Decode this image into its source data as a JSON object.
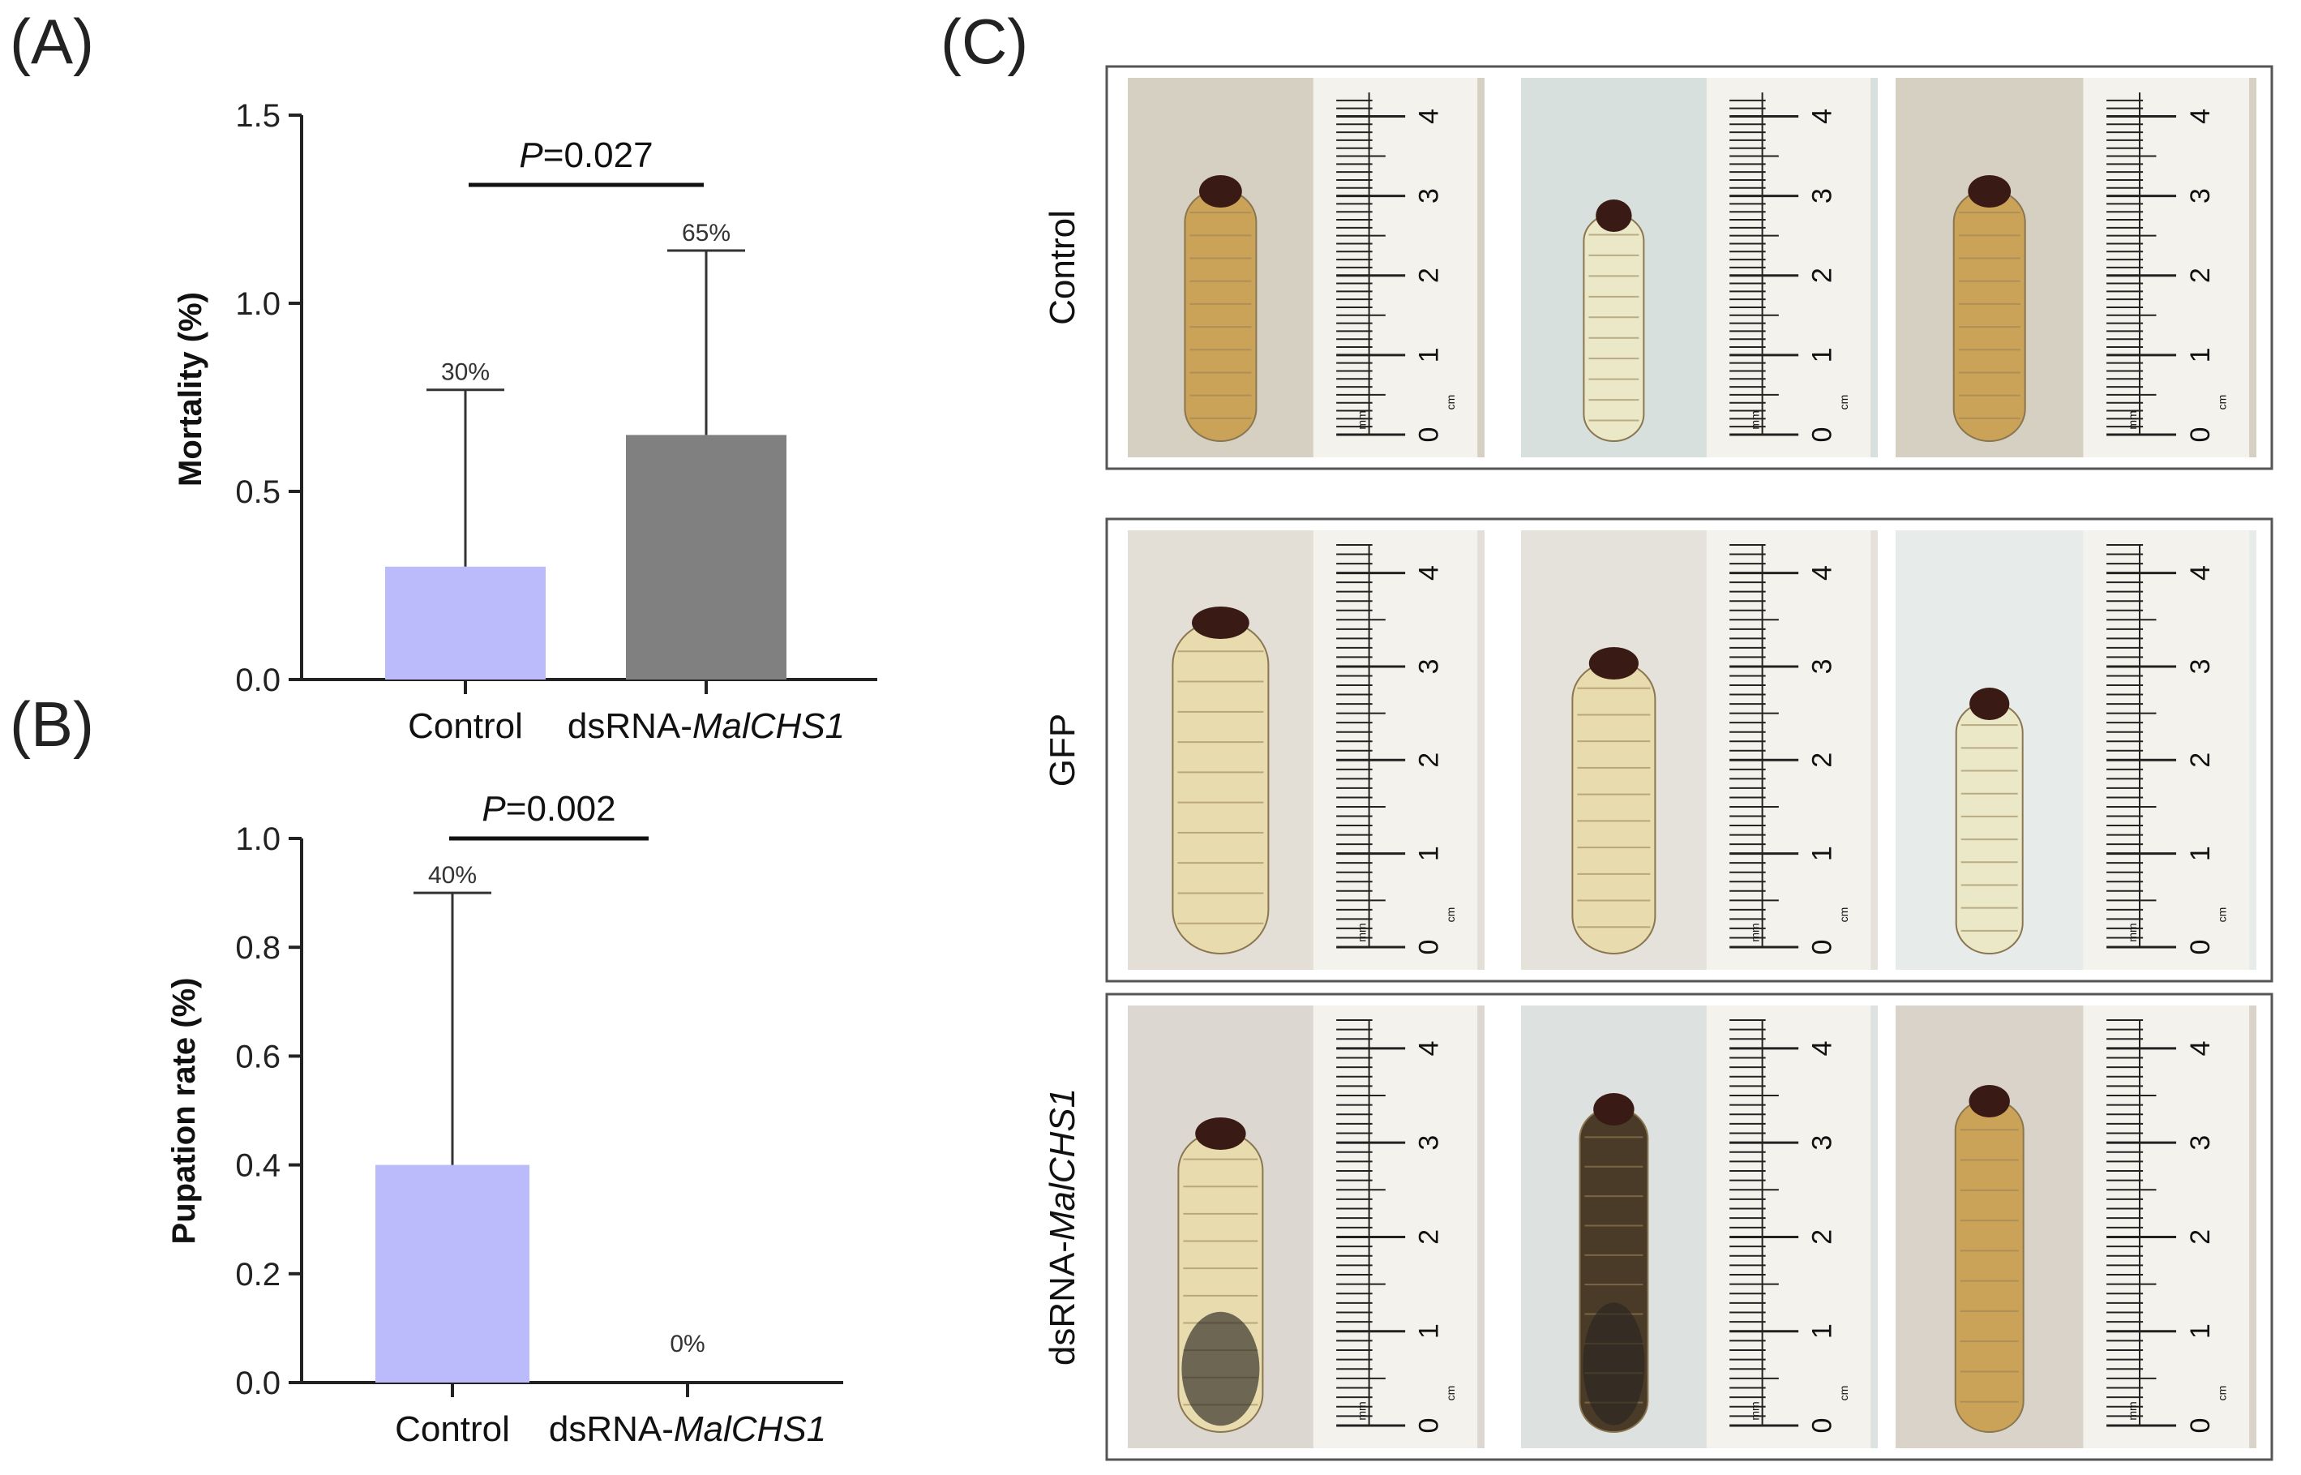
{
  "panels": {
    "a": "(A)",
    "b": "(B)",
    "c": "(C)"
  },
  "chart_data": [
    {
      "type": "bar",
      "panel": "(A)",
      "ylabel": "Mortality (%)",
      "categories": [
        {
          "plain": "Control",
          "italic": ""
        },
        {
          "plain": "dsRNA-",
          "italic": "MalCHS1"
        }
      ],
      "values": [
        0.3,
        0.65
      ],
      "error_upper": [
        0.77,
        1.14
      ],
      "value_labels": [
        "30%",
        "65%"
      ],
      "ylim": [
        0,
        1.5
      ],
      "yticks": [
        "0.0",
        "0.5",
        "1.0",
        "1.5"
      ],
      "significance": {
        "p_italic": "P",
        "p_rest": "=0.027"
      },
      "bar_colors": [
        "#bbbbfb",
        "#808080"
      ]
    },
    {
      "type": "bar",
      "panel": "(B)",
      "ylabel": "Pupation rate (%)",
      "categories": [
        {
          "plain": "Control",
          "italic": ""
        },
        {
          "plain": "dsRNA-",
          "italic": "MalCHS1"
        }
      ],
      "values": [
        0.4,
        0.0
      ],
      "error_upper": [
        0.9,
        0.0
      ],
      "value_labels": [
        "40%",
        "0%"
      ],
      "ylim": [
        0,
        1.0
      ],
      "yticks": [
        "0.0",
        "0.2",
        "0.4",
        "0.6",
        "0.8",
        "1.0"
      ],
      "significance": {
        "p_italic": "P",
        "p_rest": "=0.002"
      },
      "bar_colors": [
        "#bbbbfb",
        "#808080"
      ]
    }
  ],
  "photo_grid": {
    "rows": [
      {
        "plain": "Control",
        "italic": ""
      },
      {
        "plain": "GFP",
        "italic": ""
      },
      {
        "plain": "dsRNA-",
        "italic": "MalCHS1"
      }
    ],
    "ruler_numbers": [
      "0",
      "1",
      "2",
      "3",
      "4"
    ],
    "ruler_mm": "mm",
    "ruler_cm": "cm",
    "colors": {
      "larva_healthy": "#e8dcae",
      "larva_golden": "#caa258",
      "larva_pale": "#ebe8c8",
      "larva_dark": "#4a3a28",
      "head_capsule": "#3a1a14",
      "photo_bg": "#e6e2dc"
    }
  }
}
